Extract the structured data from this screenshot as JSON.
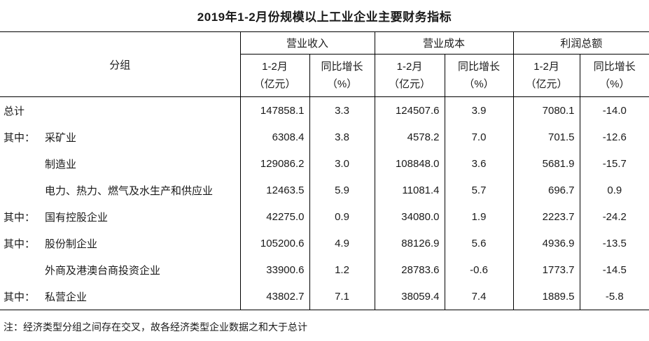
{
  "title": "2019年1-2月份规模以上工业企业主要财务指标",
  "table": {
    "row_header": "分组",
    "col_groups": [
      {
        "label": "营业收入",
        "sub": [
          {
            "line1": "1-2月",
            "line2": "（亿元）"
          },
          {
            "line1": "同比增长",
            "line2": "（%）"
          }
        ]
      },
      {
        "label": "营业成本",
        "sub": [
          {
            "line1": "1-2月",
            "line2": "（亿元）"
          },
          {
            "line1": "同比增长",
            "line2": "（%）"
          }
        ]
      },
      {
        "label": "利润总额",
        "sub": [
          {
            "line1": "1-2月",
            "line2": "（亿元）"
          },
          {
            "line1": "同比增长",
            "line2": "（%）"
          }
        ]
      }
    ],
    "rows": [
      {
        "prefix": "总计",
        "name": "",
        "revenue": "147858.1",
        "revenue_growth": "3.3",
        "cost": "124507.6",
        "cost_growth": "3.9",
        "profit": "7080.1",
        "profit_growth": "-14.0"
      },
      {
        "prefix": "其中：",
        "name": "采矿业",
        "revenue": "6308.4",
        "revenue_growth": "3.8",
        "cost": "4578.2",
        "cost_growth": "7.0",
        "profit": "701.5",
        "profit_growth": "-12.6"
      },
      {
        "prefix": "",
        "name": "制造业",
        "revenue": "129086.2",
        "revenue_growth": "3.0",
        "cost": "108848.0",
        "cost_growth": "3.6",
        "profit": "5681.9",
        "profit_growth": "-15.7"
      },
      {
        "prefix": "",
        "name": "电力、热力、燃气及水生产和供应业",
        "revenue": "12463.5",
        "revenue_growth": "5.9",
        "cost": "11081.4",
        "cost_growth": "5.7",
        "profit": "696.7",
        "profit_growth": "0.9"
      },
      {
        "prefix": "其中：",
        "name": "国有控股企业",
        "revenue": "42275.0",
        "revenue_growth": "0.9",
        "cost": "34080.0",
        "cost_growth": "1.9",
        "profit": "2223.7",
        "profit_growth": "-24.2"
      },
      {
        "prefix": "其中：",
        "name": "股份制企业",
        "revenue": "105200.6",
        "revenue_growth": "4.9",
        "cost": "88126.9",
        "cost_growth": "5.6",
        "profit": "4936.9",
        "profit_growth": "-13.5"
      },
      {
        "prefix": "",
        "name": "外商及港澳台商投资企业",
        "revenue": "33900.6",
        "revenue_growth": "1.2",
        "cost": "28783.6",
        "cost_growth": "-0.6",
        "profit": "1773.7",
        "profit_growth": "-14.5"
      },
      {
        "prefix": "其中：",
        "name": "私营企业",
        "revenue": "43802.7",
        "revenue_growth": "7.1",
        "cost": "38059.4",
        "cost_growth": "7.4",
        "profit": "1889.5",
        "profit_growth": "-5.8"
      }
    ]
  },
  "note": "注：经济类型分组之间存在交叉，故各经济类型企业数据之和大于总计"
}
